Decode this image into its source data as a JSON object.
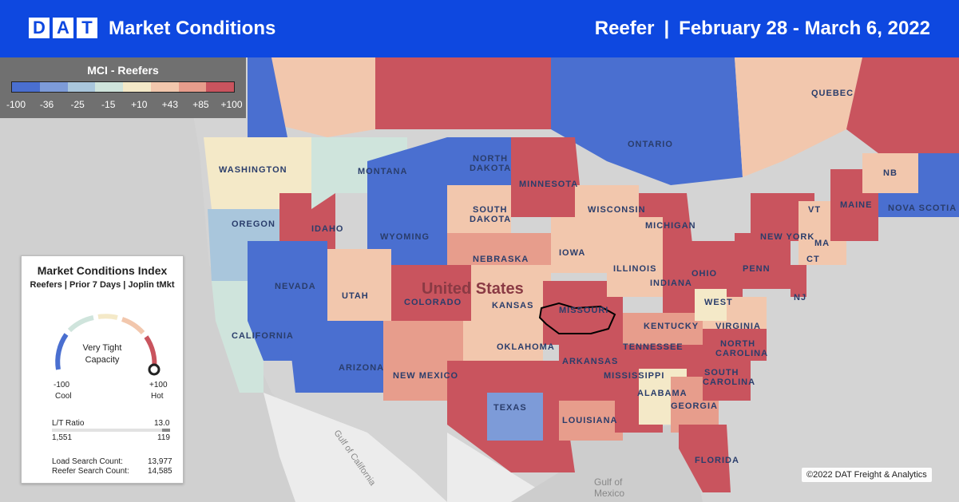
{
  "header": {
    "logo_letters": [
      "D",
      "A",
      "T"
    ],
    "title": "Market Conditions",
    "equipment": "Reefer",
    "separator": "|",
    "date_range": "February 28 - March 6, 2022"
  },
  "legend": {
    "title": "MCI - Reefers",
    "colors": [
      "#4a6fd0",
      "#7d9bd8",
      "#a9c6dc",
      "#cfe4dc",
      "#f4e9c8",
      "#f2c7ad",
      "#e79d8c",
      "#c9545e"
    ],
    "ticks": [
      "-100",
      "-36",
      "-25",
      "-15",
      "+10",
      "+43",
      "+85",
      "+100"
    ]
  },
  "panel": {
    "title": "Market Conditions Index",
    "subtitle": "Reefers | Prior 7 Days | Joplin tMkt",
    "gauge_value": 100,
    "gauge_label_line1": "Very Tight",
    "gauge_label_line2": "Capacity",
    "min_value": "-100",
    "min_label": "Cool",
    "max_value": "+100",
    "max_label": "Hot",
    "lt_label": "L/T Ratio",
    "lt_value": "13.0",
    "loads": "1,551",
    "trucks": "119",
    "lt_fill": 0.07,
    "load_search_label": "Load Search Count:",
    "load_search_value": "13,977",
    "reefer_search_label": "Reefer Search Count:",
    "reefer_search_value": "14,585"
  },
  "map_labels": {
    "ontario": "ONTARIO",
    "quebec": "QUEBEC",
    "washington": "WASHINGTON",
    "montana": "MONTANA",
    "north_dakota_1": "NORTH",
    "north_dakota_2": "DAKOTA",
    "minnesota": "MINNESOTA",
    "oregon": "OREGON",
    "idaho": "IDAHO",
    "south_dakota_1": "SOUTH",
    "south_dakota_2": "DAKOTA",
    "wisconsin": "WISCONSIN",
    "michigan": "MICHIGAN",
    "wyoming": "WYOMING",
    "nebraska": "NEBRASKA",
    "iowa": "IOWA",
    "nevada": "NEVADA",
    "utah": "UTAH",
    "colorado": "COLORADO",
    "united_states": "United States",
    "kansas": "KANSAS",
    "missouri": "MISSOURI",
    "illinois": "ILLINOIS",
    "indiana": "INDIANA",
    "ohio": "OHIO",
    "penn": "PENN",
    "new_york": "NEW YORK",
    "maine": "MAINE",
    "nb": "NB",
    "nova_scotia": "NOVA SCOTIA",
    "nj": "NJ",
    "ct": "CT",
    "ma": "MA",
    "vt": "VT",
    "california": "CALIFORNIA",
    "arizona": "ARIZONA",
    "new_mexico": "NEW MEXICO",
    "oklahoma": "OKLAHOMA",
    "arkansas": "ARKANSAS",
    "kentucky": "KENTUCKY",
    "tennessee": "TENNESSEE",
    "west_virginia_1": "WEST",
    "virginia": "VIRGINIA",
    "north_carolina_1": "NORTH",
    "north_carolina_2": "CAROLINA",
    "south_carolina_1": "SOUTH",
    "south_carolina_2": "CAROLINA",
    "texas": "TEXAS",
    "louisiana": "LOUISIANA",
    "mississippi": "MISSISSIPPI",
    "alabama": "ALABAMA",
    "georgia": "GEORGIA",
    "florida": "FLORIDA",
    "gulf_of_california": "Gulf of California",
    "gulf_of_mexico_1": "Gulf of",
    "gulf_of_mexico_2": "Mexico"
  },
  "credit": "©2022 DAT Freight & Analytics"
}
